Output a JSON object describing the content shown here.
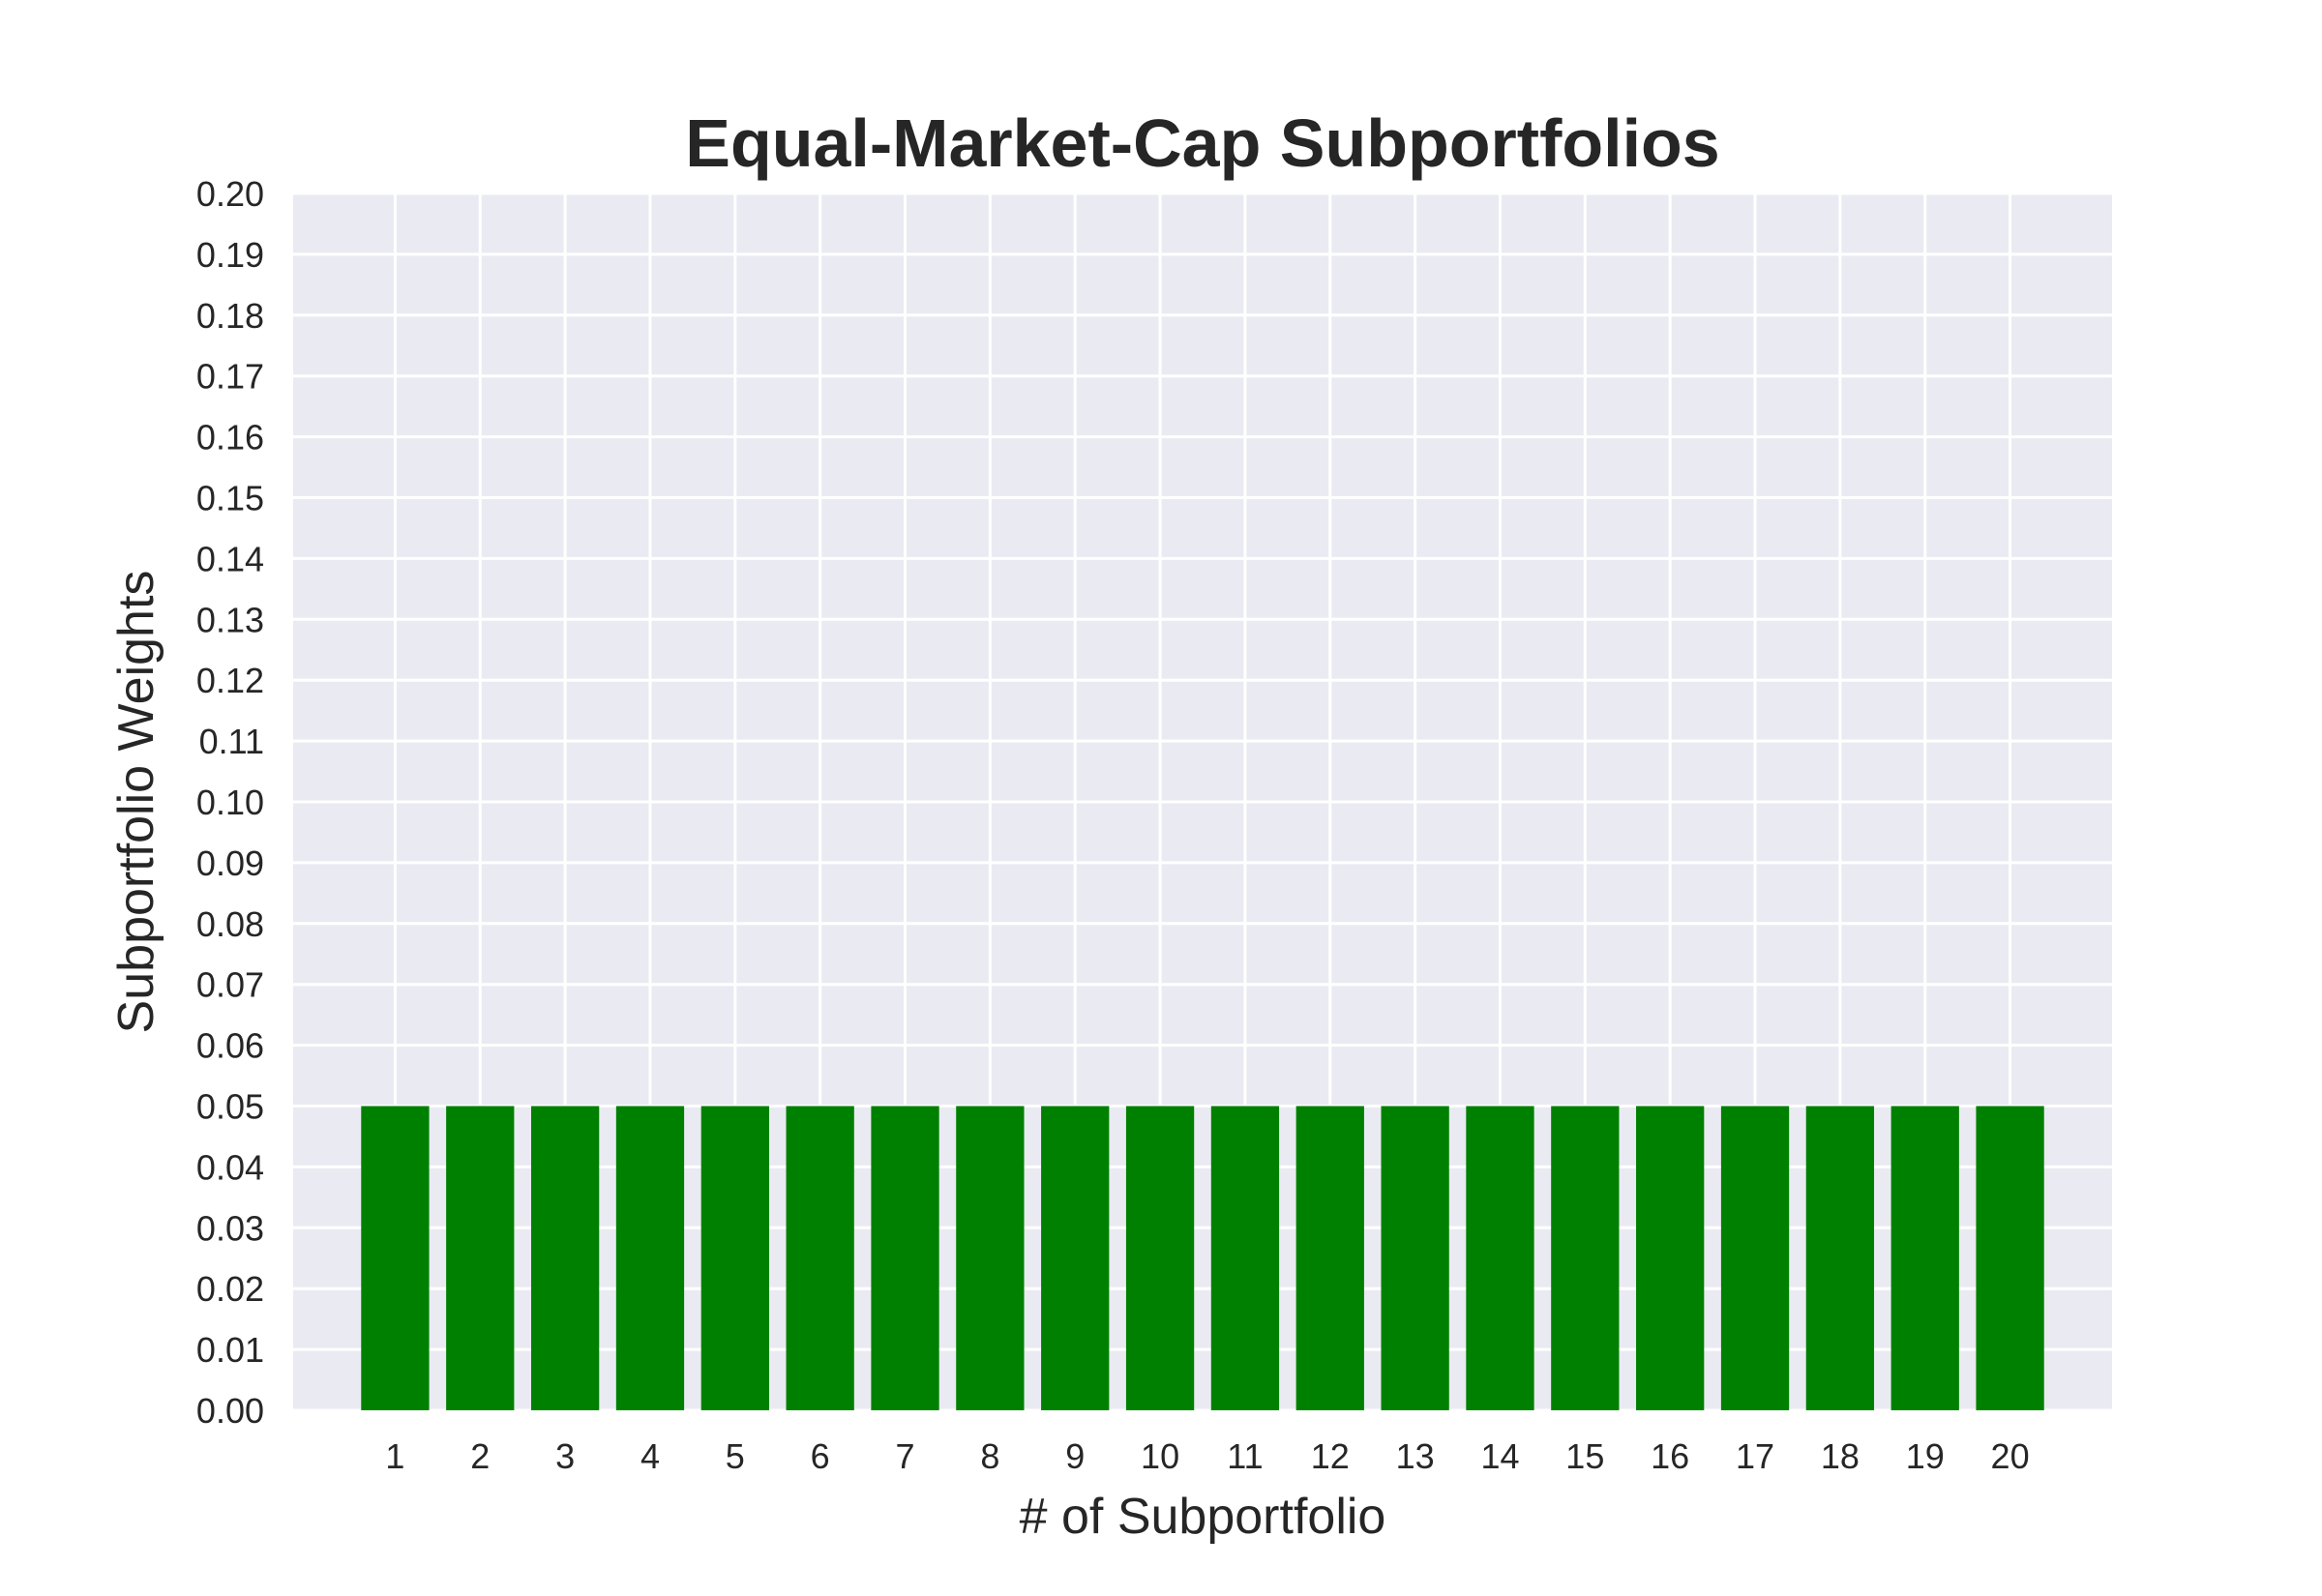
{
  "chart_data": {
    "type": "bar",
    "title": "Equal-Market-Cap Subportfolios",
    "xlabel": "# of Subportfolio",
    "ylabel": "Subportfolio Weights",
    "categories": [
      "1",
      "2",
      "3",
      "4",
      "5",
      "6",
      "7",
      "8",
      "9",
      "10",
      "11",
      "12",
      "13",
      "14",
      "15",
      "16",
      "17",
      "18",
      "19",
      "20"
    ],
    "values": [
      0.05,
      0.05,
      0.05,
      0.05,
      0.05,
      0.05,
      0.05,
      0.05,
      0.05,
      0.05,
      0.05,
      0.05,
      0.05,
      0.05,
      0.05,
      0.05,
      0.05,
      0.05,
      0.05,
      0.05
    ],
    "ylim": [
      0,
      0.2
    ],
    "yticks": [
      "0.00",
      "0.01",
      "0.02",
      "0.03",
      "0.04",
      "0.05",
      "0.06",
      "0.07",
      "0.08",
      "0.09",
      "0.10",
      "0.11",
      "0.12",
      "0.13",
      "0.14",
      "0.15",
      "0.16",
      "0.17",
      "0.18",
      "0.19",
      "0.20"
    ],
    "grid": true,
    "bar_color": "#008000",
    "plot_background": "#EAEAF2",
    "grid_color": "#FFFFFF"
  }
}
